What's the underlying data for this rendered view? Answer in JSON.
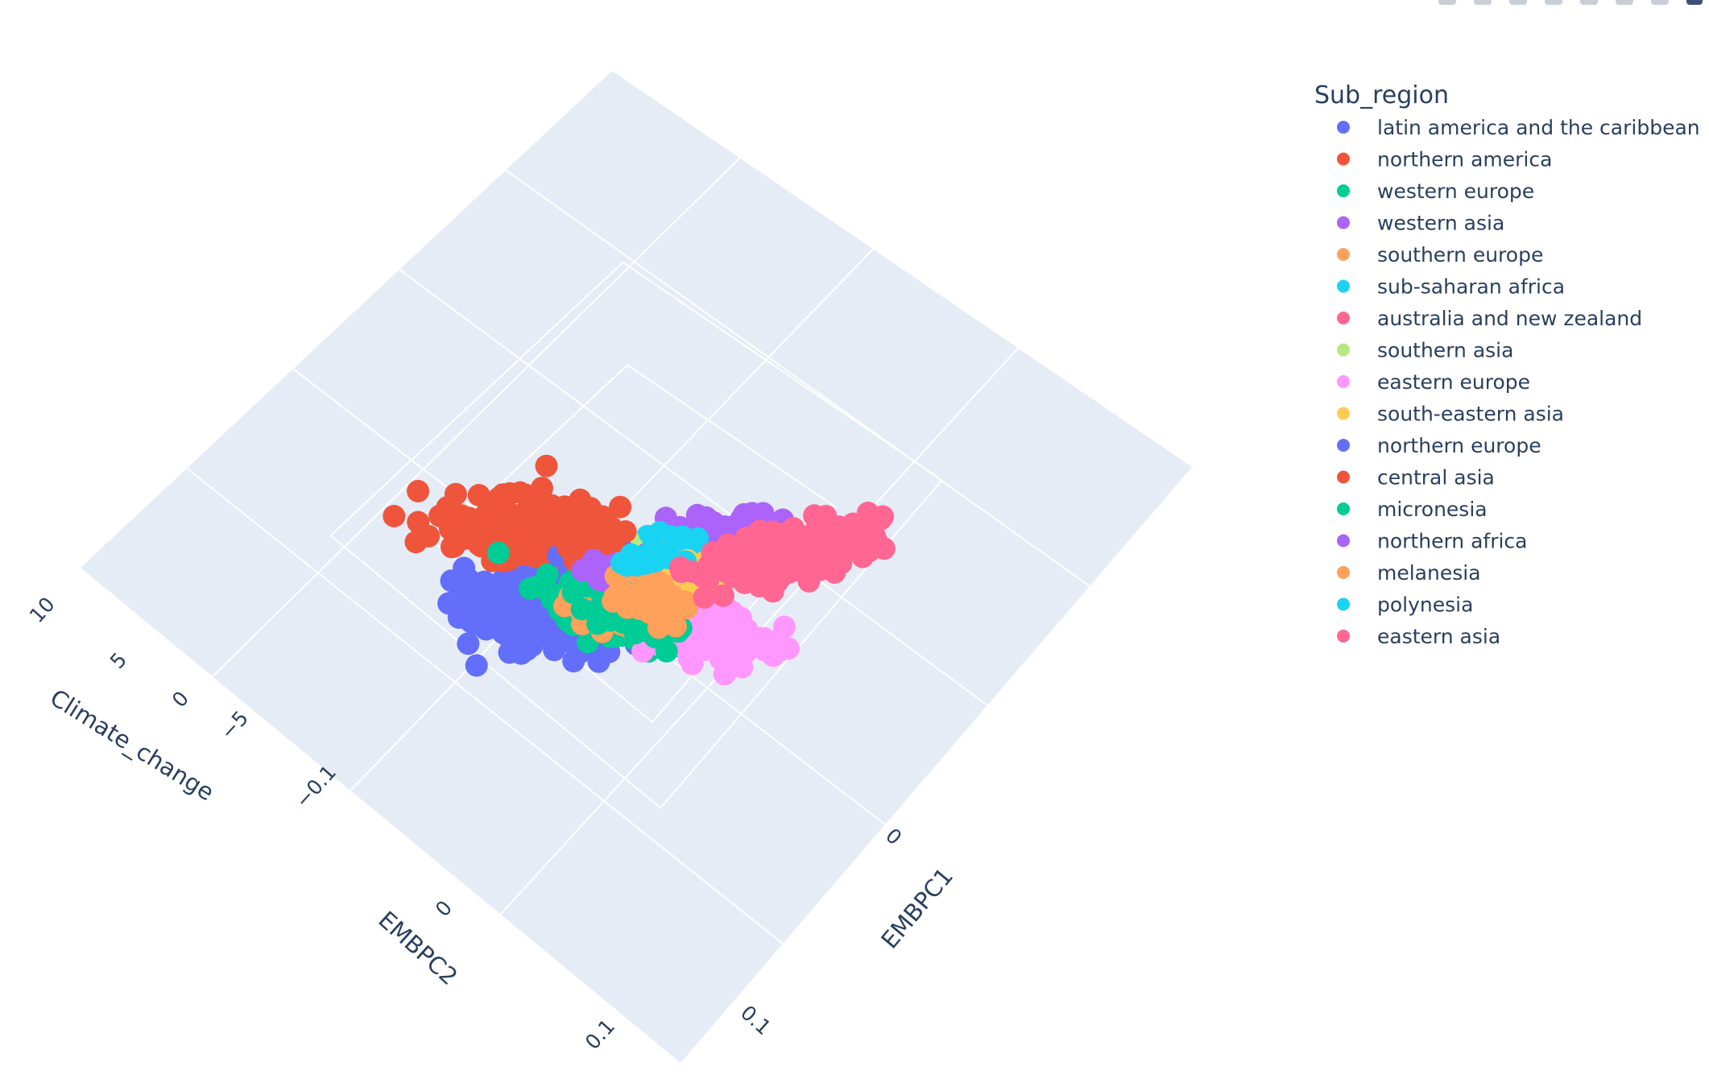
{
  "chart_data": {
    "type": "scatter3d",
    "legend_title": "Sub_region",
    "legend_position": "top-right",
    "axes": {
      "x": {
        "title": "EMBPC1",
        "ticks": [
          "0",
          "0.1"
        ]
      },
      "y": {
        "title": "EMBPC2",
        "ticks": [
          "−0.1",
          "0",
          "0.1"
        ]
      },
      "z": {
        "title": "Climate_change",
        "ticks": [
          "10",
          "5",
          "0",
          "−5"
        ]
      }
    },
    "series": [
      {
        "name": "latin america and the caribbean",
        "color": "#636efa",
        "cx": -0.09,
        "cy": -0.03,
        "spread": [
          0.035,
          0.04
        ],
        "n": 260
      },
      {
        "name": "northern america",
        "color": "#ef553b",
        "cx": 0.0,
        "cy": -0.17,
        "spread": [
          0.04,
          0.03
        ],
        "n": 200
      },
      {
        "name": "western europe",
        "color": "#00cc96",
        "cx": -0.045,
        "cy": 0.0,
        "spread": [
          0.018,
          0.035
        ],
        "n": 90
      },
      {
        "name": "western asia",
        "color": "#ab63fa",
        "cx": 0.125,
        "cy": -0.06,
        "spread": [
          0.035,
          0.018
        ],
        "n": 110
      },
      {
        "name": "southern europe",
        "color": "#ffa15a",
        "cx": -0.02,
        "cy": 0.0,
        "spread": [
          0.02,
          0.025
        ],
        "n": 60
      },
      {
        "name": "sub-saharan africa",
        "color": "#19d3f3",
        "cx": 0.075,
        "cy": -0.07,
        "spread": [
          0.018,
          0.012
        ],
        "n": 50
      },
      {
        "name": "australia and new zealand",
        "color": "#ff6692",
        "cx": 0.2,
        "cy": 0.0,
        "spread": [
          0.02,
          0.02
        ],
        "n": 10
      },
      {
        "name": "southern asia",
        "color": "#b6e880",
        "cx": 0.045,
        "cy": -0.08,
        "spread": [
          0.012,
          0.01
        ],
        "n": 18
      },
      {
        "name": "eastern europe",
        "color": "#ff97ff",
        "cx": 0.01,
        "cy": 0.06,
        "spread": [
          0.025,
          0.04
        ],
        "n": 230
      },
      {
        "name": "south-eastern asia",
        "color": "#fecb52",
        "cx": 0.06,
        "cy": -0.015,
        "spread": [
          0.02,
          0.015
        ],
        "n": 60
      },
      {
        "name": "northern europe",
        "color": "#636efa",
        "cx": 0.02,
        "cy": -0.09,
        "spread": [
          0.015,
          0.01
        ],
        "n": 25
      },
      {
        "name": "central asia",
        "color": "#ef553b",
        "cx": 0.03,
        "cy": -0.11,
        "spread": [
          0.02,
          0.015
        ],
        "n": 30
      },
      {
        "name": "micronesia",
        "color": "#00cc96",
        "cx": -0.03,
        "cy": 0.02,
        "spread": [
          0.015,
          0.03
        ],
        "n": 60
      },
      {
        "name": "northern africa",
        "color": "#ab63fa",
        "cx": 0.01,
        "cy": -0.06,
        "spread": [
          0.018,
          0.01
        ],
        "n": 30
      },
      {
        "name": "melanesia",
        "color": "#ffa15a",
        "cx": 0.0,
        "cy": 0.0,
        "spread": [
          0.02,
          0.02
        ],
        "n": 40
      },
      {
        "name": "polynesia",
        "color": "#19d3f3",
        "cx": 0.06,
        "cy": -0.06,
        "spread": [
          0.012,
          0.01
        ],
        "n": 25
      },
      {
        "name": "eastern asia",
        "color": "#ff6692",
        "cx": 0.17,
        "cy": 0.0,
        "spread": [
          0.04,
          0.02
        ],
        "n": 280
      }
    ]
  }
}
